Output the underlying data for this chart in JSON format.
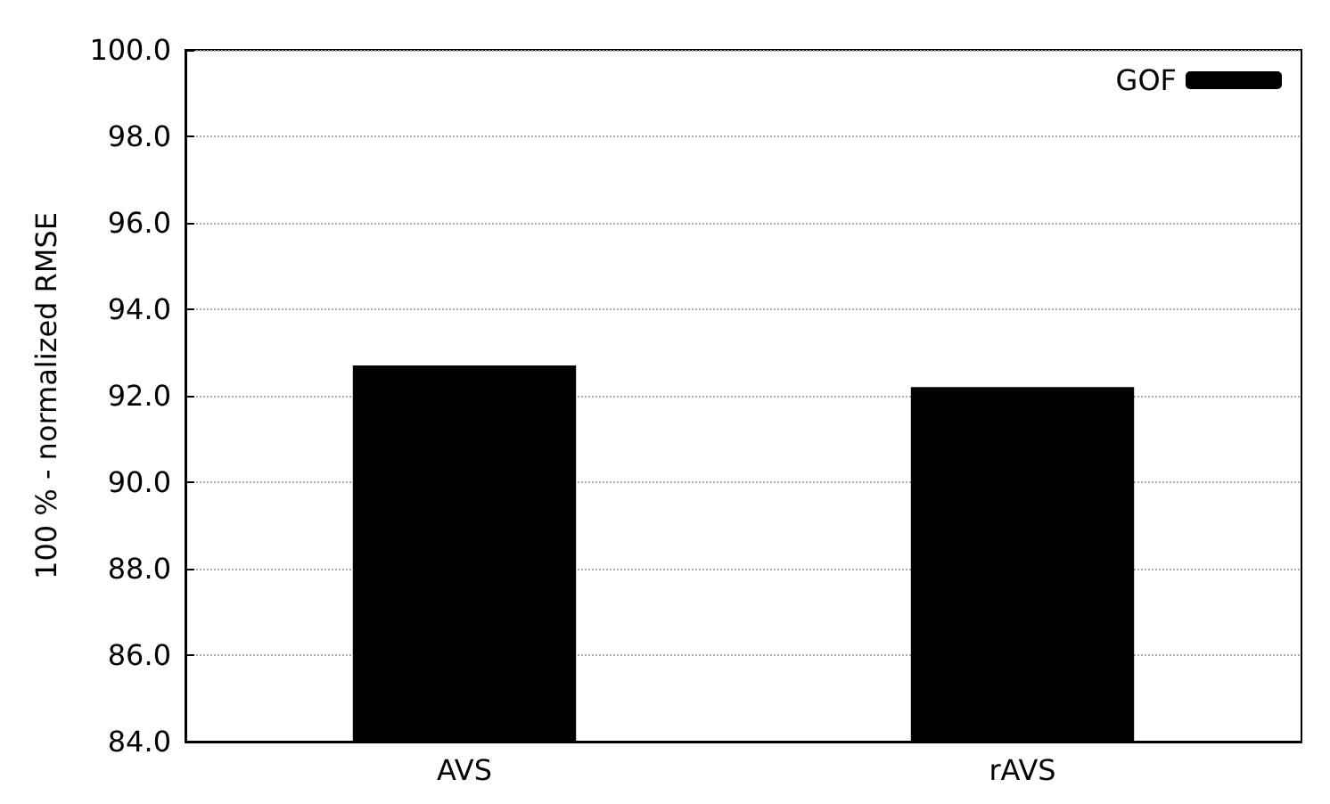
{
  "chart_data": {
    "type": "bar",
    "ylabel": "100 % - normalized RMSE",
    "categories": [
      "AVS",
      "rAVS"
    ],
    "series": [
      {
        "name": "GOF",
        "color": "#000000",
        "values": [
          92.7,
          92.2
        ]
      }
    ],
    "ylim": [
      84,
      100
    ],
    "yticks": [
      {
        "value": 84,
        "label": "84.0"
      },
      {
        "value": 86,
        "label": "86.0"
      },
      {
        "value": 88,
        "label": "88.0"
      },
      {
        "value": 90,
        "label": "90.0"
      },
      {
        "value": 92,
        "label": "92.0"
      },
      {
        "value": 94,
        "label": "94.0"
      },
      {
        "value": 96,
        "label": "96.0"
      },
      {
        "value": 98,
        "label": "98.0"
      },
      {
        "value": 100,
        "label": "100.0"
      }
    ],
    "grid": "y",
    "legend": "top right"
  }
}
